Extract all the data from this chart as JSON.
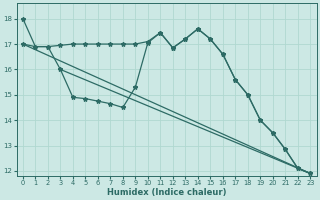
{
  "xlabel": "Humidex (Indice chaleur)",
  "bg_color": "#cce8e4",
  "grid_color": "#b0d8d0",
  "line_color": "#2d6b65",
  "xlim": [
    -0.5,
    23.5
  ],
  "ylim": [
    11.8,
    18.6
  ],
  "yticks": [
    12,
    13,
    14,
    15,
    16,
    17,
    18
  ],
  "xticks": [
    0,
    1,
    2,
    3,
    4,
    5,
    6,
    7,
    8,
    9,
    10,
    11,
    12,
    13,
    14,
    15,
    16,
    17,
    18,
    19,
    20,
    21,
    22,
    23
  ],
  "line1_x": [
    0,
    1,
    2,
    3,
    4,
    5,
    6,
    7,
    8,
    9,
    10,
    11,
    12,
    13,
    14,
    15,
    16,
    17,
    18,
    19,
    20,
    21,
    22,
    23
  ],
  "line1_y": [
    18.0,
    16.9,
    16.9,
    16.95,
    17.0,
    17.0,
    17.0,
    17.0,
    17.0,
    17.0,
    17.1,
    17.45,
    16.85,
    17.2,
    17.6,
    17.2,
    16.6,
    15.6,
    15.0,
    14.0,
    13.5,
    12.85,
    12.1,
    11.9
  ],
  "line2_x": [
    0,
    1,
    2,
    3,
    4,
    5,
    6,
    7,
    8,
    9,
    10,
    11,
    12,
    13,
    14,
    15,
    16,
    17,
    18,
    19,
    20,
    21,
    22,
    23
  ],
  "line2_y": [
    17.0,
    16.9,
    16.9,
    16.0,
    14.9,
    14.85,
    14.75,
    14.65,
    14.5,
    15.3,
    17.05,
    17.45,
    16.85,
    17.2,
    17.6,
    17.2,
    16.6,
    15.6,
    15.0,
    14.0,
    13.5,
    12.85,
    12.1,
    11.9
  ],
  "line3_x": [
    0,
    23
  ],
  "line3_y": [
    17.0,
    11.9
  ],
  "line4_x": [
    3,
    23
  ],
  "line4_y": [
    16.0,
    11.9
  ]
}
